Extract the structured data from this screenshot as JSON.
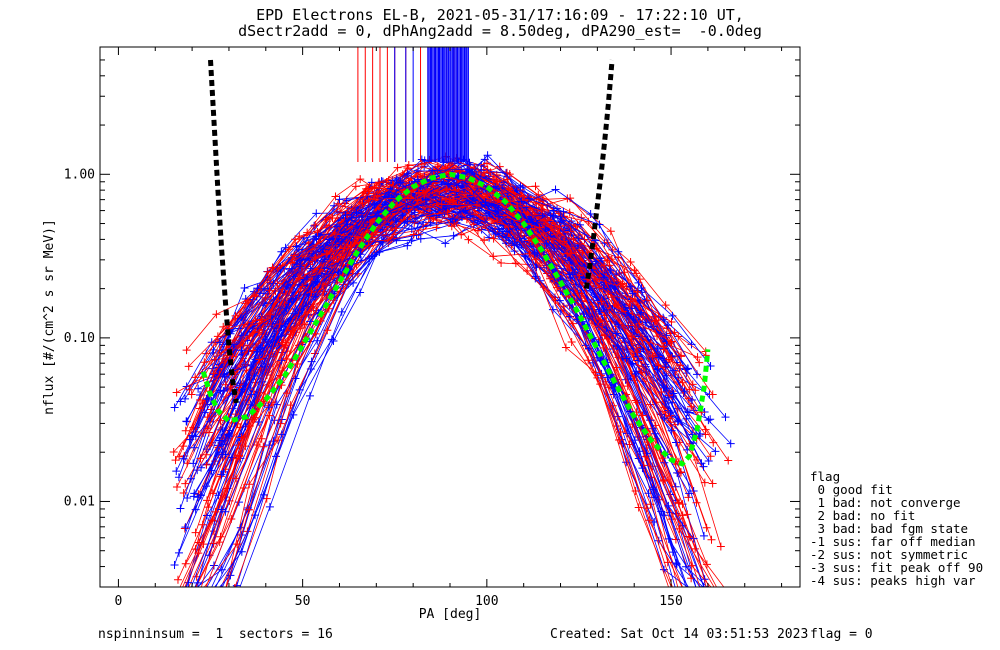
{
  "title_line1": "EPD Electrons EL-B, 2021-05-31/17:16:09 - 17:22:10 UT,",
  "title_line2": "dSectr2add = 0, dPhAng2add = 8.50deg, dPA290_est=  -0.0deg",
  "footer": {
    "nspin": "nspinninsum =  1  sectors = 16",
    "created": "Created: Sat Oct 14 03:51:53 2023",
    "flag": "flag = 0"
  },
  "legend": {
    "title": "flag",
    "items": [
      " 0 good fit",
      " 1 bad: not converge",
      " 2 bad: no fit",
      " 3 bad: bad fgm state",
      "-1 sus: far off median",
      "-2 sus: not symmetric",
      "-3 sus: fit peak off 90",
      "-4 sus: peaks high var"
    ]
  },
  "colors": {
    "red": "#ff0000",
    "blue": "#0000ff",
    "green": "#00ff00",
    "black": "#000000"
  },
  "chart_data": {
    "type": "line",
    "xlabel": "PA [deg]",
    "ylabel": "nflux [#/(cm^2 s sr MeV)]",
    "xlim": [
      -5,
      185
    ],
    "ylim": [
      0.003,
      6.0
    ],
    "yscale": "log",
    "xticks": [
      0,
      50,
      100,
      150
    ],
    "xtick_labels": [
      "0",
      "50",
      "100",
      "150"
    ],
    "yticks": [
      0.01,
      0.1,
      1.0
    ],
    "ytick_labels": [
      "0.01",
      "0.10",
      "1.00"
    ],
    "series": [
      {
        "color": "green",
        "style": "dashed",
        "x": [
          23,
          25,
          27,
          30,
          35,
          40,
          45,
          50,
          55,
          60,
          65,
          70,
          75,
          80,
          85,
          90,
          95,
          100,
          105,
          110,
          115,
          120,
          125,
          130,
          135,
          140,
          145,
          150,
          153,
          155,
          157,
          159,
          160
        ],
        "y": [
          0.062,
          0.045,
          0.036,
          0.031,
          0.033,
          0.042,
          0.058,
          0.09,
          0.14,
          0.22,
          0.34,
          0.5,
          0.68,
          0.84,
          0.95,
          1.0,
          0.95,
          0.84,
          0.68,
          0.5,
          0.34,
          0.22,
          0.14,
          0.085,
          0.052,
          0.033,
          0.023,
          0.018,
          0.017,
          0.019,
          0.027,
          0.05,
          0.085
        ]
      },
      {
        "color": "black",
        "style": "dashed",
        "x": [
          25,
          26,
          27,
          28,
          29,
          30,
          31,
          32
        ],
        "y": [
          5.0,
          2.0,
          0.8,
          0.35,
          0.17,
          0.09,
          0.055,
          0.04
        ]
      },
      {
        "color": "black",
        "style": "dashed",
        "x": [
          127,
          128,
          129,
          130,
          131,
          132,
          133,
          134
        ],
        "y": [
          0.2,
          0.28,
          0.42,
          0.65,
          1.0,
          1.6,
          2.7,
          5.0
        ]
      }
    ],
    "red_ticks_x": [
      65,
      67,
      69,
      71,
      73,
      75,
      78,
      82,
      84,
      86,
      87,
      88,
      89,
      90,
      91,
      92,
      93,
      94
    ],
    "blue_ticks_x": [
      75,
      78,
      80,
      84,
      85,
      86,
      87,
      88,
      89,
      90,
      91,
      92,
      93,
      94,
      95
    ]
  }
}
